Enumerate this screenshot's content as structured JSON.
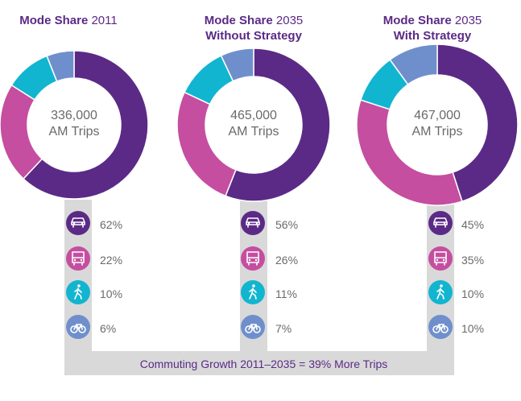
{
  "chart_data": [
    {
      "type": "pie",
      "title_bold": "Mode Share",
      "title_light": "2011",
      "subtitle": "",
      "center_value": "336,000",
      "center_label": "AM Trips",
      "categories": [
        "Car",
        "Bus",
        "Walk",
        "Bike"
      ],
      "values": [
        62,
        22,
        10,
        6
      ],
      "labels": [
        "62%",
        "22%",
        "10%",
        "6%"
      ]
    },
    {
      "type": "pie",
      "title_bold": "Mode Share",
      "title_light": "2035",
      "subtitle": "Without Strategy",
      "center_value": "465,000",
      "center_label": "AM Trips",
      "categories": [
        "Car",
        "Bus",
        "Walk",
        "Bike"
      ],
      "values": [
        56,
        26,
        11,
        7
      ],
      "labels": [
        "56%",
        "26%",
        "11%",
        "7%"
      ]
    },
    {
      "type": "pie",
      "title_bold": "Mode Share",
      "title_light": "2035",
      "subtitle": "With Strategy",
      "center_value": "467,000",
      "center_label": "AM Trips",
      "categories": [
        "Car",
        "Bus",
        "Walk",
        "Bike"
      ],
      "values": [
        45,
        35,
        10,
        10
      ],
      "labels": [
        "45%",
        "35%",
        "10%",
        "10%"
      ]
    }
  ],
  "modes": [
    {
      "key": "car",
      "color": "#5b2a86",
      "icon": "car-icon"
    },
    {
      "key": "bus",
      "color": "#c54ea0",
      "icon": "bus-icon"
    },
    {
      "key": "walk",
      "color": "#12b5cf",
      "icon": "walk-icon"
    },
    {
      "key": "bike",
      "color": "#6f8fcc",
      "icon": "bike-icon"
    }
  ],
  "connector_color": "#d9d9d9",
  "footer": "Commuting Growth 2011–2035 = 39% More Trips"
}
